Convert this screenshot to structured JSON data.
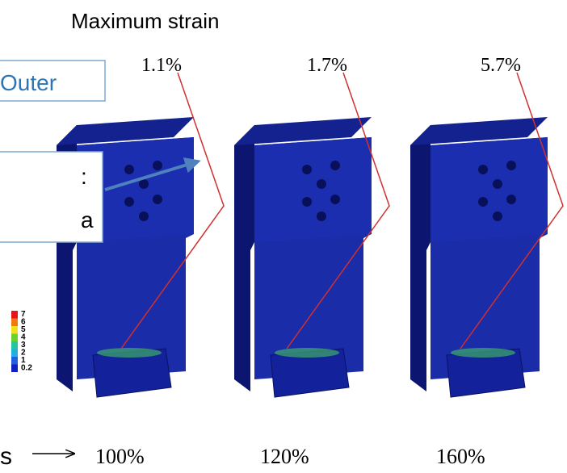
{
  "title": "Maximum strain",
  "outer_label": "Outer",
  "inner_label_lines": [
    ":",
    "a"
  ],
  "bottom_label": "s",
  "colorbar": {
    "labels": [
      "7",
      "6",
      "5",
      "4",
      "3",
      "2",
      "1",
      "0.2"
    ]
  },
  "models": [
    {
      "max_strain": "1.1%",
      "scale": "100%"
    },
    {
      "max_strain": "1.7%",
      "scale": "120%"
    },
    {
      "max_strain": "5.7%",
      "scale": "160%"
    }
  ]
}
